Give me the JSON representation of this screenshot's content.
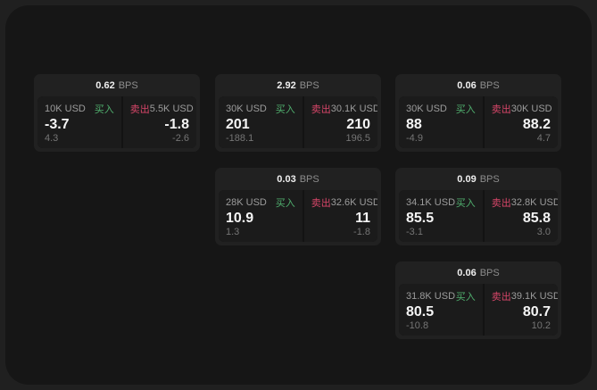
{
  "labels": {
    "bps_unit": "BPS",
    "buy": "买入",
    "sell": "卖出"
  },
  "colors": {
    "buy_accent": "#50af6e",
    "sell_accent": "#d74669",
    "surface": "#161616",
    "frame": "#202020",
    "card": "#212121",
    "panel": "#1b1b1b"
  },
  "cards": [
    {
      "bps": "0.62",
      "col": 0,
      "row": 0,
      "buy": {
        "notional": "10K USD",
        "value": "-3.7",
        "delta": "4.3"
      },
      "sell": {
        "notional": "5.5K USD",
        "value": "-1.8",
        "delta": "-2.6"
      }
    },
    {
      "bps": "2.92",
      "col": 1,
      "row": 0,
      "buy": {
        "notional": "30K USD",
        "value": "201",
        "delta": "-188.1"
      },
      "sell": {
        "notional": "30.1K USD",
        "value": "210",
        "delta": "196.5"
      }
    },
    {
      "bps": "0.03",
      "col": 1,
      "row": 1,
      "buy": {
        "notional": "28K USD",
        "value": "10.9",
        "delta": "1.3"
      },
      "sell": {
        "notional": "32.6K USD",
        "value": "11",
        "delta": "-1.8"
      }
    },
    {
      "bps": "0.06",
      "col": 2,
      "row": 0,
      "buy": {
        "notional": "30K USD",
        "value": "88",
        "delta": "-4.9"
      },
      "sell": {
        "notional": "30K USD",
        "value": "88.2",
        "delta": "4.7"
      }
    },
    {
      "bps": "0.09",
      "col": 2,
      "row": 1,
      "buy": {
        "notional": "34.1K USD",
        "value": "85.5",
        "delta": "-3.1"
      },
      "sell": {
        "notional": "32.8K USD",
        "value": "85.8",
        "delta": "3.0"
      }
    },
    {
      "bps": "0.06",
      "col": 2,
      "row": 2,
      "buy": {
        "notional": "31.8K USD",
        "value": "80.5",
        "delta": "-10.8"
      },
      "sell": {
        "notional": "39.1K USD",
        "value": "80.7",
        "delta": "10.2"
      }
    }
  ]
}
